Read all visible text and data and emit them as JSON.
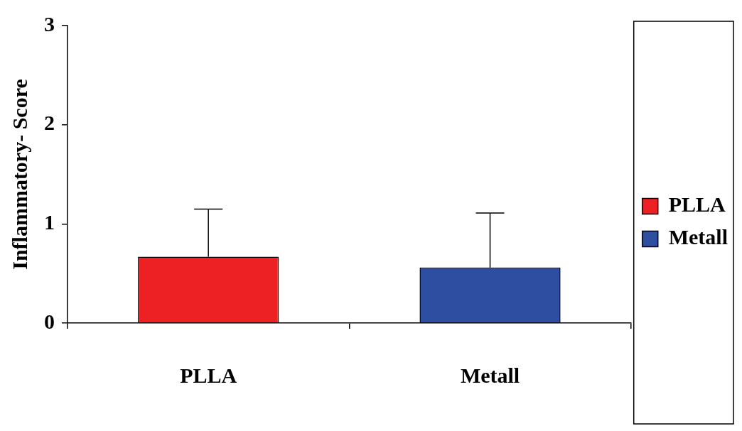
{
  "chart_data": {
    "type": "bar",
    "ylabel": "Inflammatory- Score",
    "categories": [
      "PLLA",
      "Metall"
    ],
    "series": [
      {
        "name": "PLLA",
        "color": "#ed2024",
        "values": [
          0.67,
          null
        ],
        "errors": [
          [
            0.67,
            1.15
          ],
          null
        ]
      },
      {
        "name": "Metall",
        "color": "#2e4ea1",
        "values": [
          null,
          0.56
        ],
        "errors": [
          null,
          [
            0.56,
            1.11
          ]
        ]
      }
    ],
    "ylim": [
      0,
      3
    ],
    "yticks": [
      0,
      1,
      2,
      3
    ],
    "grid": false,
    "legend": "right"
  }
}
